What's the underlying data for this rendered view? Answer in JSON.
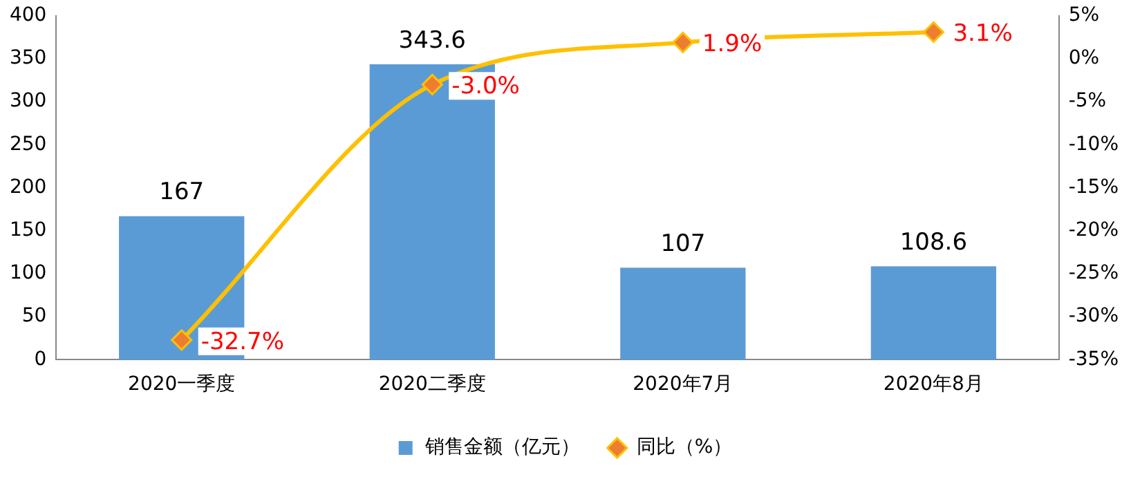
{
  "chart_data": {
    "type": "bar",
    "categories": [
      "2020一季度",
      "2020二季度",
      "2020年7月",
      "2020年8月"
    ],
    "series": [
      {
        "name": "销售金额（亿元）",
        "color": "#5b9bd5",
        "values": [
          167,
          343.6,
          107,
          108.6
        ],
        "value_labels": [
          "167",
          "343.6",
          "107",
          "108.6"
        ]
      },
      {
        "name": "同比（%）",
        "type": "line",
        "axis": "y2",
        "color": "#ffc000",
        "values": [
          -32.7,
          -3.0,
          1.9,
          3.1
        ],
        "value_labels": [
          "-32.7%",
          "-3.0%",
          "1.9%",
          "3.1%"
        ],
        "marker": "diamond"
      }
    ],
    "ylim": [
      0,
      400
    ],
    "yticks": [
      0,
      50,
      100,
      150,
      200,
      250,
      300,
      350,
      400
    ],
    "y2lim": [
      -35,
      5
    ],
    "y2ticks": [
      {
        "value": 5,
        "label": "5%"
      },
      {
        "value": 0,
        "label": "0%"
      },
      {
        "value": -5,
        "label": "-5%"
      },
      {
        "value": -10,
        "label": "-10%"
      },
      {
        "value": -15,
        "label": "-15%"
      },
      {
        "value": -20,
        "label": "-20%"
      },
      {
        "value": -25,
        "label": "-25%"
      },
      {
        "value": -30,
        "label": "-30%"
      },
      {
        "value": -35,
        "label": "-35%"
      }
    ],
    "grid": false,
    "legend": "bottom"
  }
}
